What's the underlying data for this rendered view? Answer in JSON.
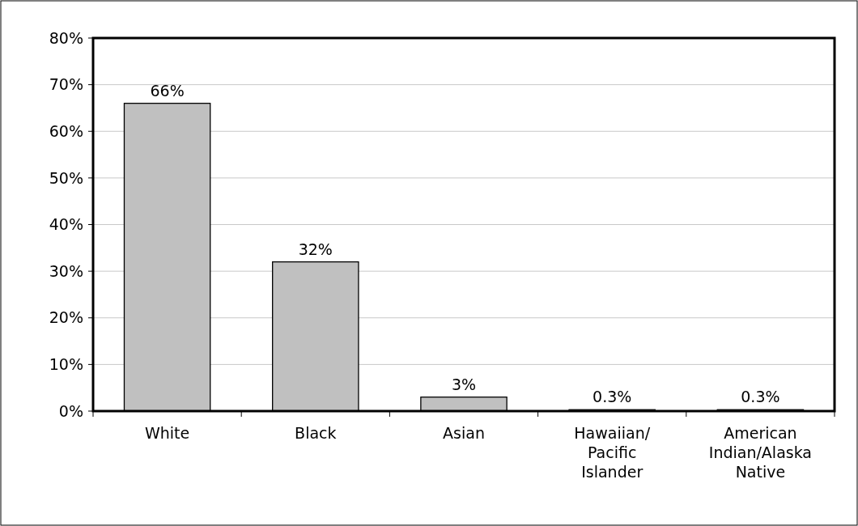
{
  "chart_data": {
    "type": "bar",
    "categories": [
      "White",
      "Black",
      "Asian",
      "Hawaiian/Pacific Islander",
      "American Indian/Alaska Native"
    ],
    "values": [
      66,
      32,
      3,
      0.3,
      0.3
    ],
    "value_labels": [
      "66%",
      "32%",
      "3%",
      "0.3%",
      "0.3%"
    ],
    "color": "#c0c0c0",
    "ylim": [
      0,
      80
    ],
    "yticks": [
      {
        "value": 0,
        "label": "0%"
      },
      {
        "value": 10,
        "label": "10%"
      },
      {
        "value": 20,
        "label": "20%"
      },
      {
        "value": 30,
        "label": "30%"
      },
      {
        "value": 40,
        "label": "40%"
      },
      {
        "value": 50,
        "label": "50%"
      },
      {
        "value": 60,
        "label": "60%"
      },
      {
        "value": 70,
        "label": "70%"
      },
      {
        "value": 80,
        "label": "80%"
      }
    ],
    "grid": "y"
  }
}
